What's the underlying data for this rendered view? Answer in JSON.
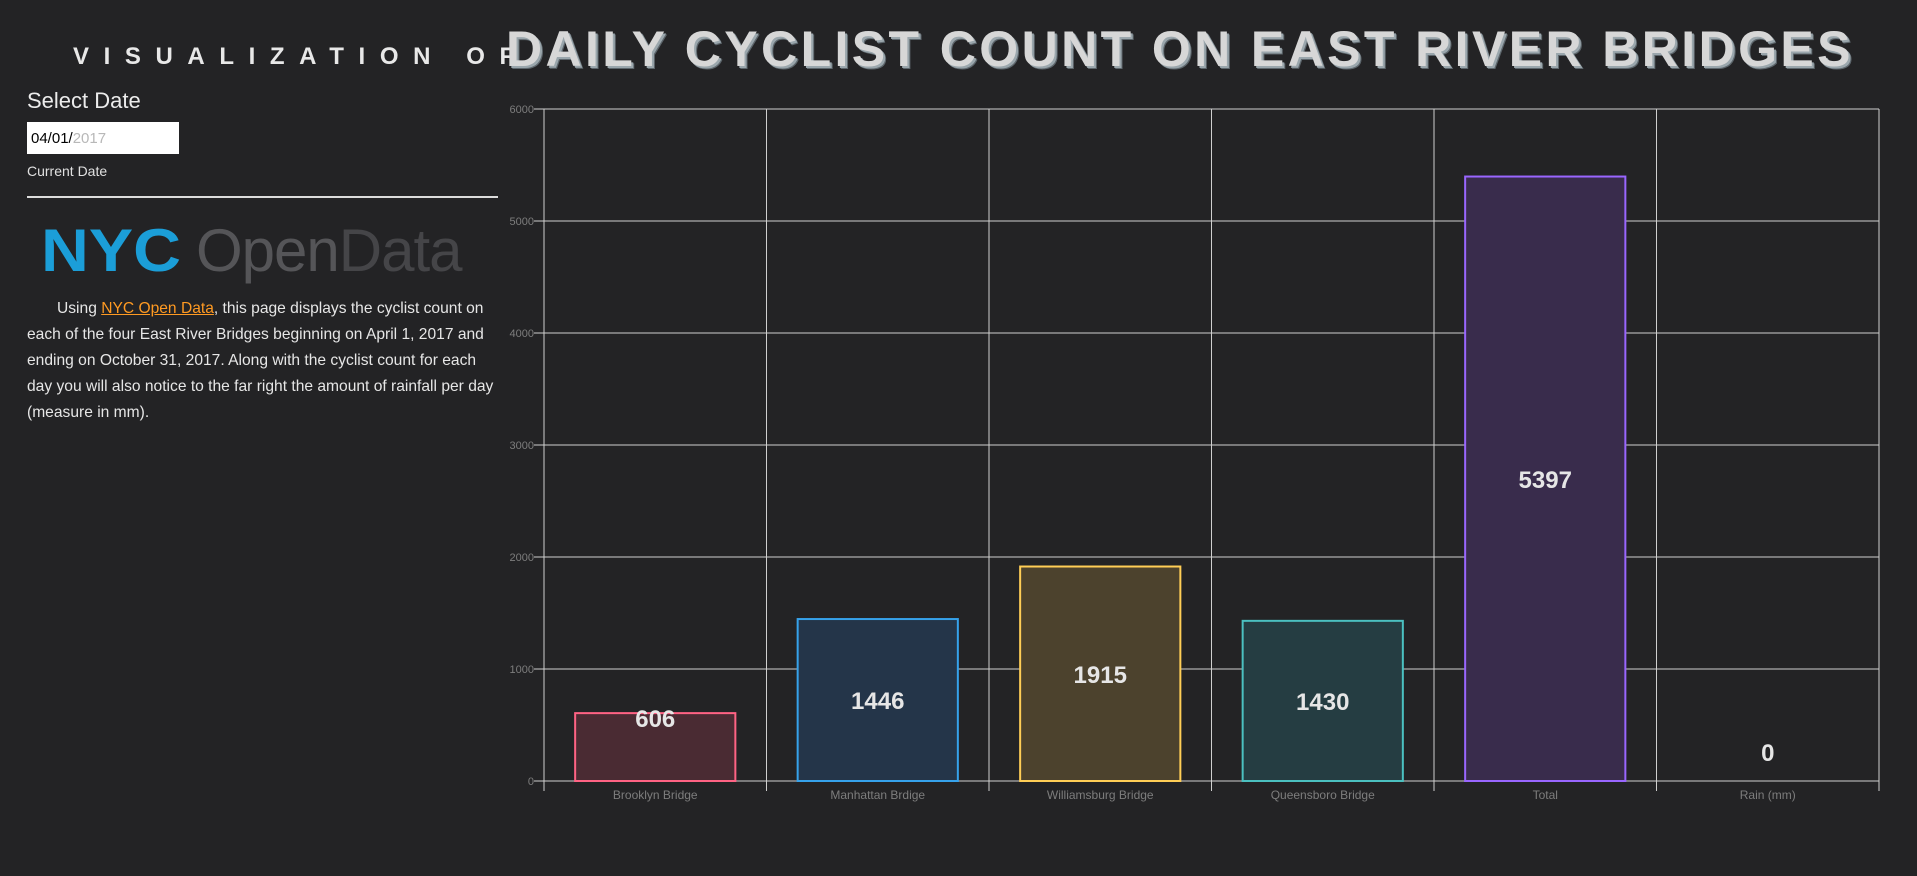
{
  "header": {
    "subtitle": "VISUALIZATION OF",
    "title": "DAILY CYCLIST COUNT ON EAST RIVER BRIDGES"
  },
  "sidebar": {
    "select_label": "Select Date",
    "date_value_part": "04/01/",
    "date_year_part": "2017",
    "current_label": "Current Date",
    "logo_nyc": "NYC",
    "logo_open": "Open",
    "logo_data": "Data",
    "desc_prefix": "Using ",
    "desc_link": "NYC Open Data",
    "desc_suffix": ", this page displays the cyclist count on each of the four East River Bridges beginning on April 1, 2017 and ending on October 31, 2017. Along with the cyclist count for each day you will also notice to the far right the amount of rainfall per day (measure in mm)."
  },
  "colors": {
    "background": "#232325",
    "grid": "#cfcfcf",
    "link": "#ff9a22",
    "logo_blue": "#1b9ed8"
  },
  "chart_data": {
    "type": "bar",
    "title": "DAILY CYCLIST COUNT ON EAST RIVER BRIDGES",
    "categories": [
      "Brooklyn Bridge",
      "Manhattan Brdige",
      "Williamsburg Bridge",
      "Queensboro Bridge",
      "Total",
      "Rain (mm)"
    ],
    "values": [
      606,
      1446,
      1915,
      1430,
      5397,
      0
    ],
    "data_labels": [
      "606",
      "1446",
      "1915",
      "1430",
      "5397",
      "0"
    ],
    "ylim": [
      0,
      6000
    ],
    "yticks": [
      0,
      1000,
      2000,
      3000,
      4000,
      5000,
      6000
    ],
    "grid": true,
    "legend": "none",
    "bar_colors": [
      {
        "stroke": "#ff6384",
        "fill": "#4a2b33"
      },
      {
        "stroke": "#36a2eb",
        "fill": "#243549"
      },
      {
        "stroke": "#ffce56",
        "fill": "#4c422d"
      },
      {
        "stroke": "#4bc0c0",
        "fill": "#253d42"
      },
      {
        "stroke": "#9966ff",
        "fill": "#392c4c"
      },
      {
        "stroke": "#c9cbcf",
        "fill": "#3a3b3d"
      }
    ]
  }
}
